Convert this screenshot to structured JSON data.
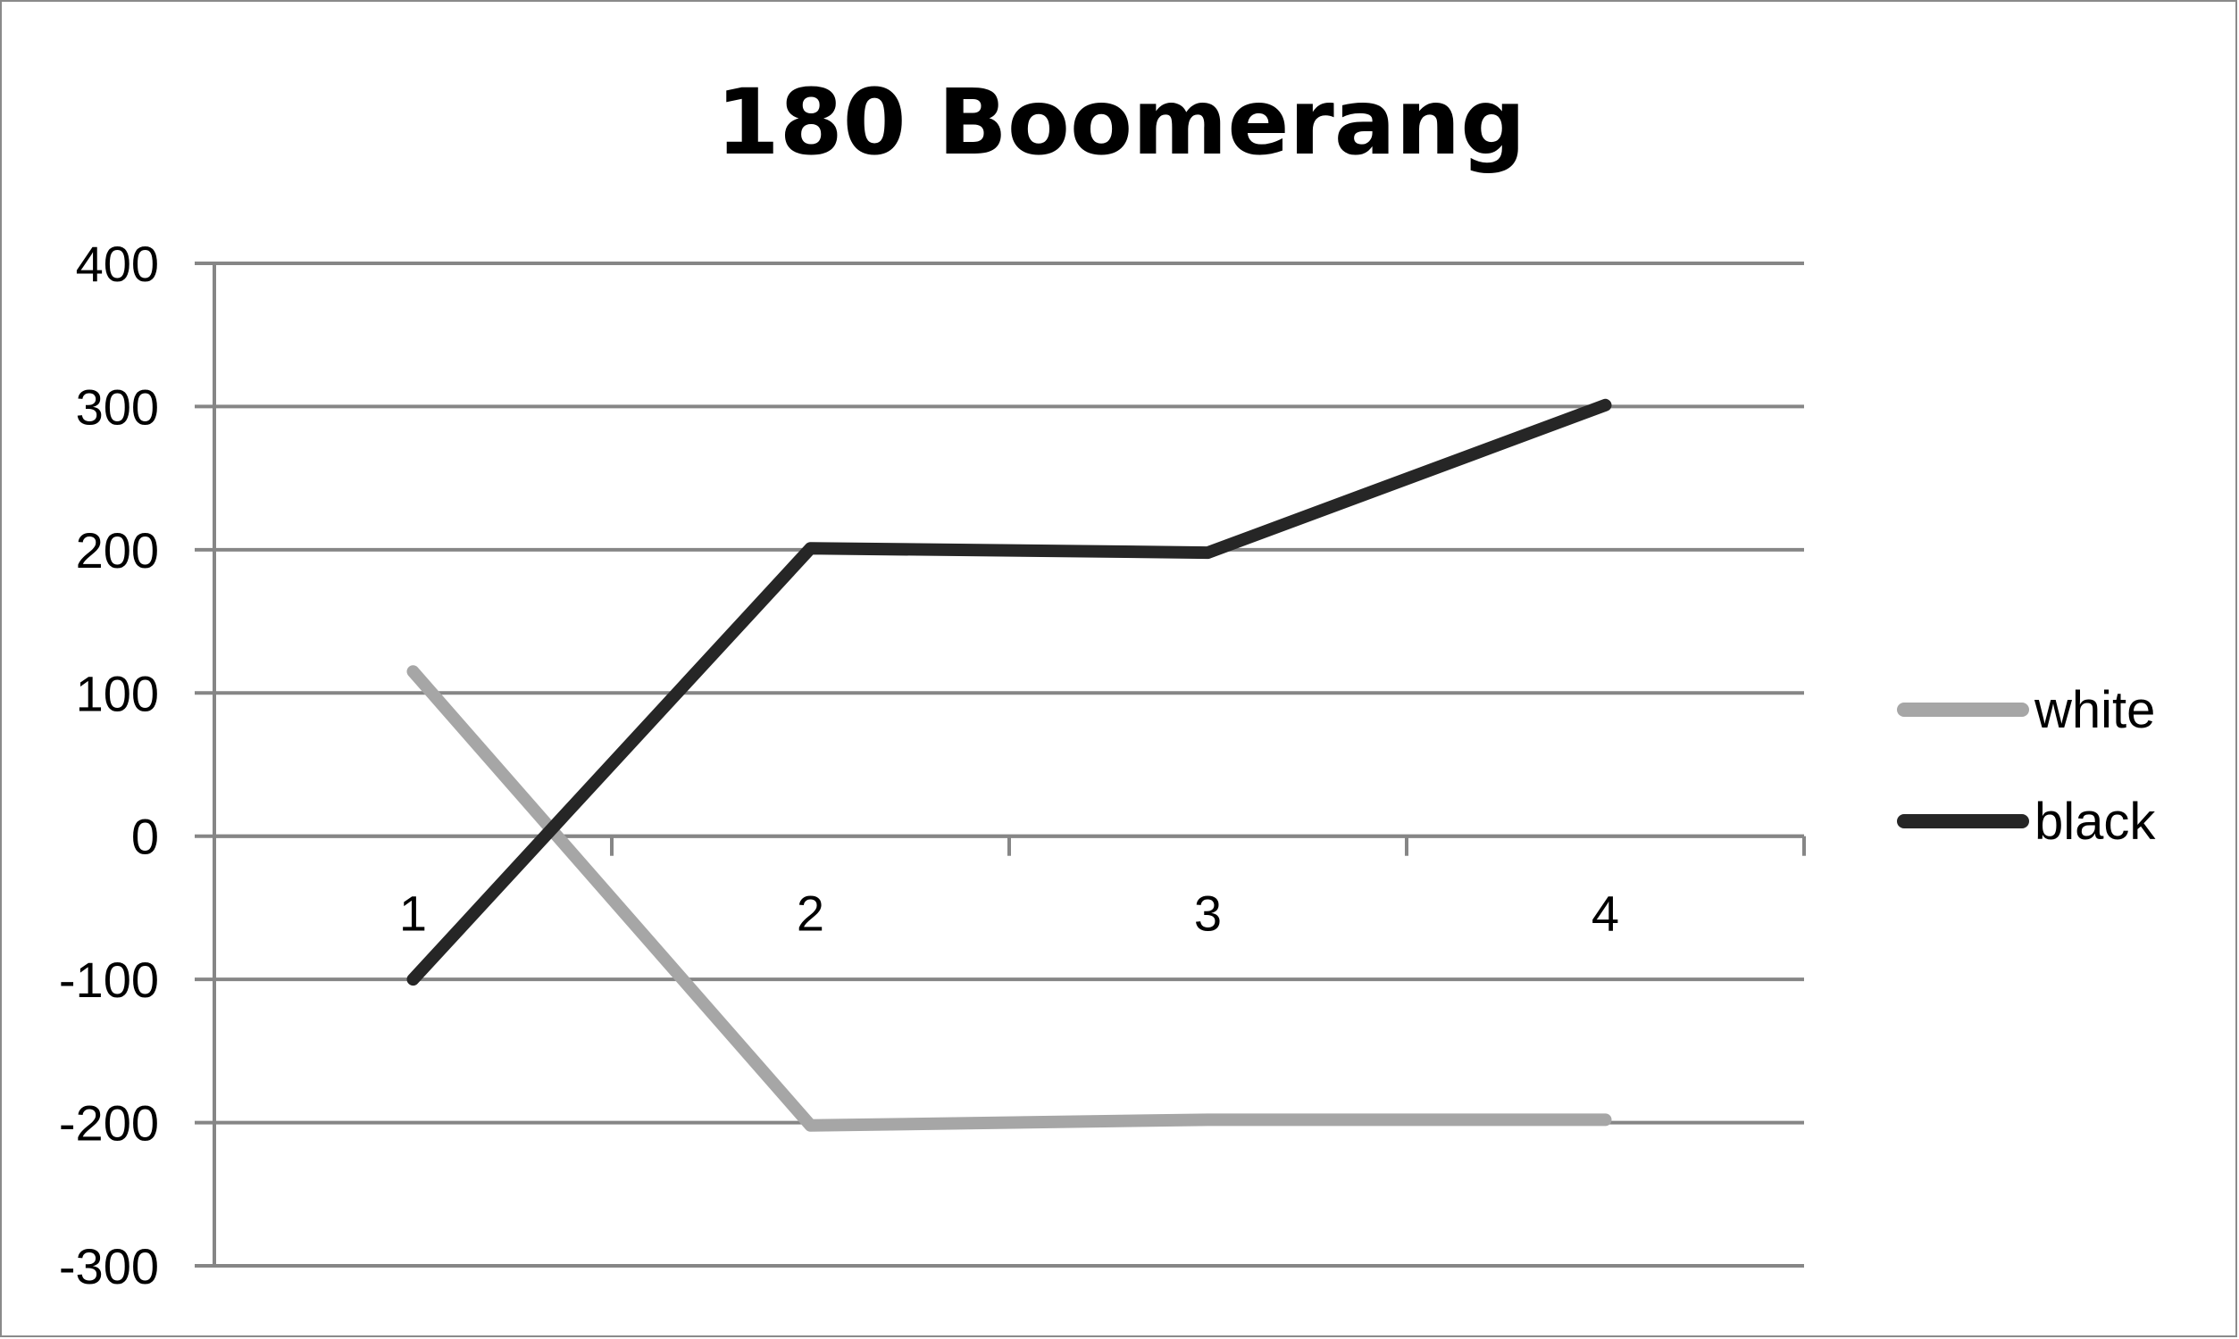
{
  "chart_data": {
    "type": "line",
    "title": "180 Boomerang",
    "xlabel": "",
    "ylabel": "",
    "categories": [
      "1",
      "2",
      "3",
      "4"
    ],
    "ylim": [
      -300,
      400
    ],
    "yticks": [
      "400",
      "300",
      "200",
      "100",
      "0",
      "-100",
      "-200",
      "-300"
    ],
    "grid": true,
    "legend_position": "right",
    "series": [
      {
        "name": "white",
        "values": [
          115,
          -202,
          -198,
          -198
        ],
        "color": "#a6a6a6"
      },
      {
        "name": "black",
        "values": [
          -100,
          201,
          198,
          301
        ],
        "color": "#262626"
      }
    ]
  }
}
